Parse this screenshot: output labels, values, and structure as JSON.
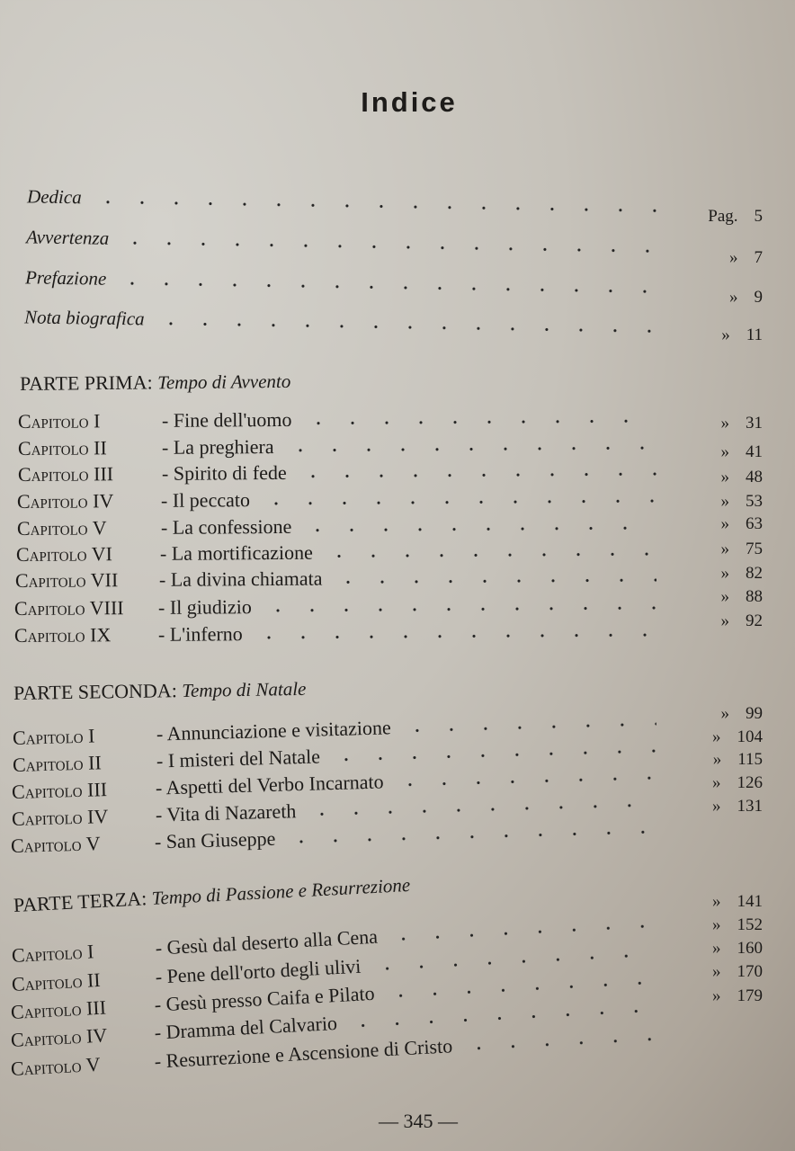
{
  "title": "Indice",
  "front_matter": [
    {
      "label": "Dedica",
      "prefix": "Pag.",
      "page": "5"
    },
    {
      "label": "Avvertenza",
      "prefix": "»",
      "page": "7"
    },
    {
      "label": "Prefazione",
      "prefix": "»",
      "page": "9"
    },
    {
      "label": "Nota biografica",
      "prefix": "»",
      "page": "11"
    }
  ],
  "parts": [
    {
      "label": "PARTE PRIMA:",
      "subtitle": "Tempo di Avvento",
      "chapters": [
        {
          "cap": "Capitolo",
          "num": "I",
          "title": "- Fine dell'uomo",
          "page": "31"
        },
        {
          "cap": "Capitolo",
          "num": "II",
          "title": "- La preghiera",
          "page": "41"
        },
        {
          "cap": "Capitolo",
          "num": "III",
          "title": "- Spirito di fede",
          "page": "48"
        },
        {
          "cap": "Capitolo",
          "num": "IV",
          "title": "- Il peccato",
          "page": "53"
        },
        {
          "cap": "Capitolo",
          "num": "V",
          "title": "- La confessione",
          "page": "63"
        },
        {
          "cap": "Capitolo",
          "num": "VI",
          "title": "- La mortificazione",
          "page": "75"
        },
        {
          "cap": "Capitolo",
          "num": "VII",
          "title": "- La divina chiamata",
          "page": "82"
        },
        {
          "cap": "Capitolo",
          "num": "VIII",
          "title": "- Il giudizio",
          "page": "88"
        },
        {
          "cap": "Capitolo",
          "num": "IX",
          "title": "- L'inferno",
          "page": "92"
        }
      ]
    },
    {
      "label": "PARTE SECONDA:",
      "subtitle": "Tempo di Natale",
      "page": "99",
      "chapters": [
        {
          "cap": "Capitolo",
          "num": "I",
          "title": "- Annunciazione e visitazione",
          "page": "104"
        },
        {
          "cap": "Capitolo",
          "num": "II",
          "title": "- I misteri del Natale",
          "page": "115"
        },
        {
          "cap": "Capitolo",
          "num": "III",
          "title": "- Aspetti del Verbo Incarnato",
          "page": "126"
        },
        {
          "cap": "Capitolo",
          "num": "IV",
          "title": "- Vita di Nazareth",
          "page": "131"
        },
        {
          "cap": "Capitolo",
          "num": "V",
          "title": "- San Giuseppe",
          "page": ""
        }
      ]
    },
    {
      "label": "PARTE TERZA:",
      "subtitle": "Tempo di Passione e Resurrezione",
      "page": "141",
      "chapters": [
        {
          "cap": "Capitolo",
          "num": "I",
          "title": "- Gesù dal deserto alla Cena",
          "page": "152"
        },
        {
          "cap": "Capitolo",
          "num": "II",
          "title": "- Pene dell'orto degli ulivi",
          "page": "160"
        },
        {
          "cap": "Capitolo",
          "num": "III",
          "title": "- Gesù presso Caifa e Pilato",
          "page": "170"
        },
        {
          "cap": "Capitolo",
          "num": "IV",
          "title": "- Dramma del Calvario",
          "page": "179"
        },
        {
          "cap": "Capitolo",
          "num": "V",
          "title": "- Resurrezione e Ascensione di Cristo",
          "page": ""
        }
      ]
    }
  ],
  "quote_mark": "»",
  "footer": "— 345 —"
}
